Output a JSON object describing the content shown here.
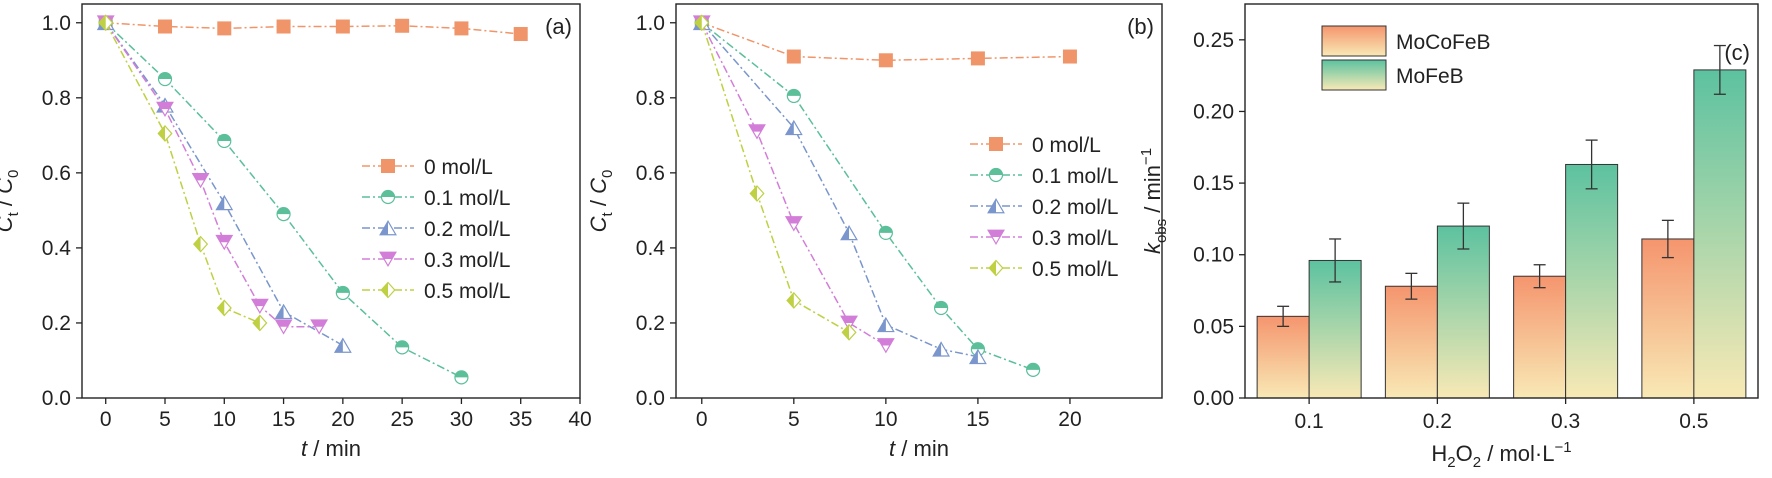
{
  "chart_data": [
    {
      "type": "line",
      "panel_label": "(a)",
      "xlabel": {
        "var": "t",
        "unit": " / min"
      },
      "ylabel": {
        "var": "C",
        "sub1": "t",
        "mid": " / ",
        "var2": "C",
        "sub2": "0"
      },
      "xlim": [
        -2,
        40
      ],
      "ylim": [
        0,
        1.05
      ],
      "xticks": [
        0,
        5,
        10,
        15,
        20,
        25,
        30,
        35,
        40
      ],
      "yticks": [
        0.0,
        0.2,
        0.4,
        0.6,
        0.8,
        1.0
      ],
      "ytick_labels": [
        "0.0",
        "0.2",
        "0.4",
        "0.6",
        "0.8",
        "1.0"
      ],
      "legend_position": "middle-right",
      "series": [
        {
          "name": "0 mol/L",
          "marker": "square",
          "color": "#F0956A",
          "x": [
            0,
            5,
            10,
            15,
            20,
            25,
            30,
            35
          ],
          "y": [
            1.0,
            0.99,
            0.985,
            0.99,
            0.99,
            0.992,
            0.985,
            0.97
          ]
        },
        {
          "name": "0.1 mol/L",
          "marker": "circle-half",
          "color": "#5BBF9A",
          "x": [
            0,
            5,
            10,
            15,
            20,
            25,
            30
          ],
          "y": [
            1.0,
            0.85,
            0.685,
            0.49,
            0.28,
            0.135,
            0.055
          ]
        },
        {
          "name": "0.2 mol/L",
          "marker": "triangle-up-half",
          "color": "#7A96CC",
          "x": [
            0,
            5,
            10,
            15,
            20
          ],
          "y": [
            1.0,
            0.78,
            0.52,
            0.23,
            0.14
          ]
        },
        {
          "name": "0.3 mol/L",
          "marker": "triangle-down-half",
          "color": "#D27ED8",
          "x": [
            0,
            5,
            8,
            10,
            13,
            15,
            18
          ],
          "y": [
            1.0,
            0.77,
            0.58,
            0.415,
            0.245,
            0.19,
            0.19
          ]
        },
        {
          "name": "0.5 mol/L",
          "marker": "diamond-half",
          "color": "#BFD043",
          "x": [
            0,
            5,
            8,
            10,
            13
          ],
          "y": [
            1.0,
            0.705,
            0.41,
            0.24,
            0.2
          ]
        }
      ]
    },
    {
      "type": "line",
      "panel_label": "(b)",
      "xlabel": {
        "var": "t",
        "unit": " / min"
      },
      "ylabel": {
        "var": "C",
        "sub1": "t",
        "mid": " / ",
        "var2": "C",
        "sub2": "0"
      },
      "xlim": [
        -1.4,
        25
      ],
      "ylim": [
        0,
        1.05
      ],
      "xticks": [
        0,
        5,
        10,
        15,
        20
      ],
      "yticks": [
        0.0,
        0.2,
        0.4,
        0.6,
        0.8,
        1.0
      ],
      "ytick_labels": [
        "0.0",
        "0.2",
        "0.4",
        "0.6",
        "0.8",
        "1.0"
      ],
      "legend_position": "middle-right",
      "series": [
        {
          "name": "0 mol/L",
          "marker": "square",
          "color": "#F0956A",
          "x": [
            0,
            5,
            10,
            15,
            20
          ],
          "y": [
            1.0,
            0.91,
            0.9,
            0.905,
            0.91
          ]
        },
        {
          "name": "0.1 mol/L",
          "marker": "circle-half",
          "color": "#5BBF9A",
          "x": [
            0,
            5,
            10,
            13,
            15,
            18
          ],
          "y": [
            1.0,
            0.805,
            0.44,
            0.24,
            0.13,
            0.075
          ]
        },
        {
          "name": "0.2 mol/L",
          "marker": "triangle-up-half",
          "color": "#7A96CC",
          "x": [
            0,
            5,
            8,
            10,
            13,
            15
          ],
          "y": [
            1.0,
            0.72,
            0.44,
            0.195,
            0.13,
            0.11
          ]
        },
        {
          "name": "0.3 mol/L",
          "marker": "triangle-down-half",
          "color": "#D27ED8",
          "x": [
            0,
            3,
            5,
            8,
            10
          ],
          "y": [
            1.0,
            0.71,
            0.465,
            0.2,
            0.14
          ]
        },
        {
          "name": "0.5 mol/L",
          "marker": "diamond-half",
          "color": "#BFD043",
          "x": [
            0,
            3,
            5,
            8
          ],
          "y": [
            1.0,
            0.545,
            0.26,
            0.175
          ]
        }
      ]
    },
    {
      "type": "bar",
      "panel_label": "(c)",
      "xlabel": {
        "h": "H",
        "hsub": "2",
        "o": "O",
        "osub": "2",
        "unit": " / mol·L",
        "sup": "−1"
      },
      "ylabel": {
        "var": "k",
        "sub": "obs",
        "unit": " / min",
        "sup": "−1"
      },
      "ylim": [
        0,
        0.275
      ],
      "yticks": [
        0.0,
        0.05,
        0.1,
        0.15,
        0.2,
        0.25
      ],
      "ytick_labels": [
        "0.00",
        "0.05",
        "0.10",
        "0.15",
        "0.20",
        "0.25"
      ],
      "categories": [
        "0.1",
        "0.2",
        "0.3",
        "0.5"
      ],
      "legend_position": "top-left",
      "series": [
        {
          "name": "MoCoFeB",
          "values": [
            0.057,
            0.078,
            0.085,
            0.111
          ],
          "errors": [
            0.007,
            0.009,
            0.008,
            0.013
          ],
          "gradient": [
            "#F5956E",
            "#F8E9B5"
          ]
        },
        {
          "name": "MoFeB",
          "values": [
            0.096,
            0.12,
            0.163,
            0.229
          ],
          "errors": [
            0.015,
            0.016,
            0.017,
            0.017
          ],
          "gradient": [
            "#5CC2A0",
            "#F8E9B5"
          ]
        }
      ]
    }
  ]
}
